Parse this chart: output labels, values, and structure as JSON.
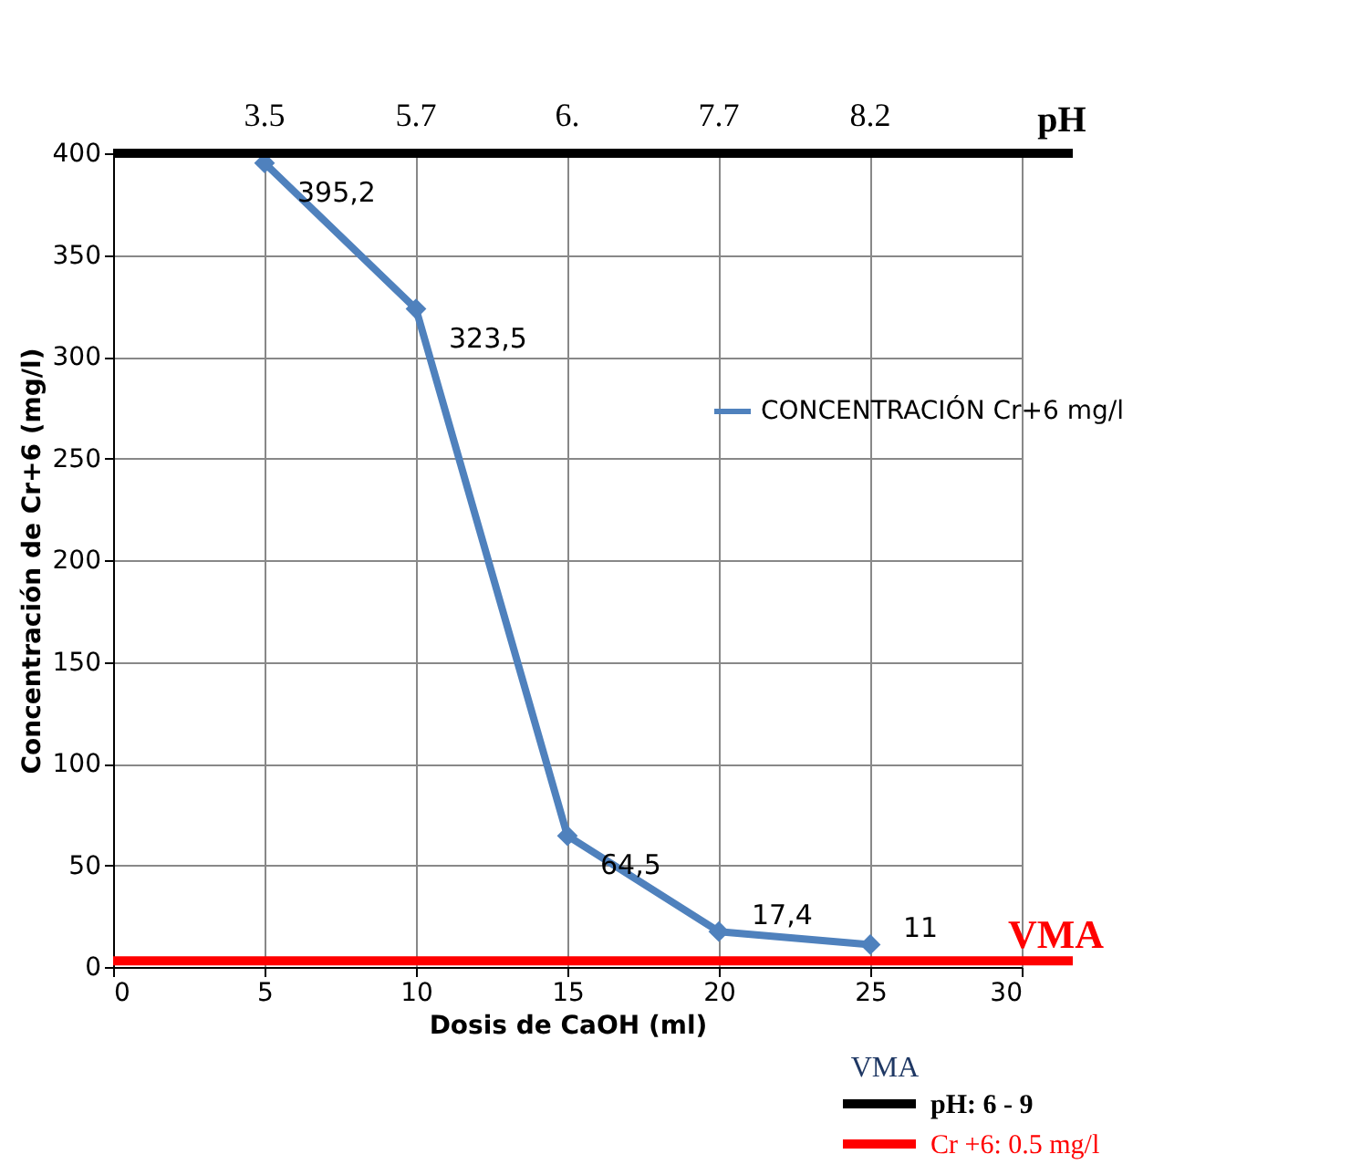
{
  "chart_data": {
    "type": "line",
    "xlabel": "Dosis de CaOH (ml)",
    "ylabel": "Concentración de Cr+6 (mg/l)",
    "x": [
      5,
      10,
      15,
      20,
      25
    ],
    "series": [
      {
        "name": "CONCENTRACIÓN Cr+6 mg/l",
        "color": "#4f81bd",
        "values": [
          395.2,
          323.5,
          64.5,
          17.4,
          11
        ],
        "value_labels": [
          "395,2",
          "323,5",
          "64,5",
          "17,4",
          "11"
        ]
      }
    ],
    "xlim": [
      0,
      30
    ],
    "xticks": [
      0,
      5,
      10,
      15,
      20,
      25,
      30
    ],
    "ylim": [
      0,
      400
    ],
    "yticks": [
      0,
      50,
      100,
      150,
      200,
      250,
      300,
      350,
      400
    ],
    "ref_lines": [
      {
        "axis": "y",
        "value": 400,
        "color": "#000000"
      },
      {
        "axis": "y",
        "value": 3,
        "label": "VMA",
        "color": "#ff0000"
      }
    ],
    "annotations": [
      {
        "text": "3.5",
        "x": 5,
        "y": 400
      },
      {
        "text": "5.7",
        "x": 10,
        "y": 400
      },
      {
        "text": "6.",
        "x": 15,
        "y": 400
      },
      {
        "text": "7.7",
        "x": 20,
        "y": 400
      },
      {
        "text": "8.2",
        "x": 25,
        "y": 400
      },
      "pH",
      "VMA",
      "pH: 6 - 9",
      "Cr +6: 0.5 mg/l"
    ],
    "grid": true,
    "legend": "right",
    "marker": "diamond",
    "line_style": "solid"
  }
}
